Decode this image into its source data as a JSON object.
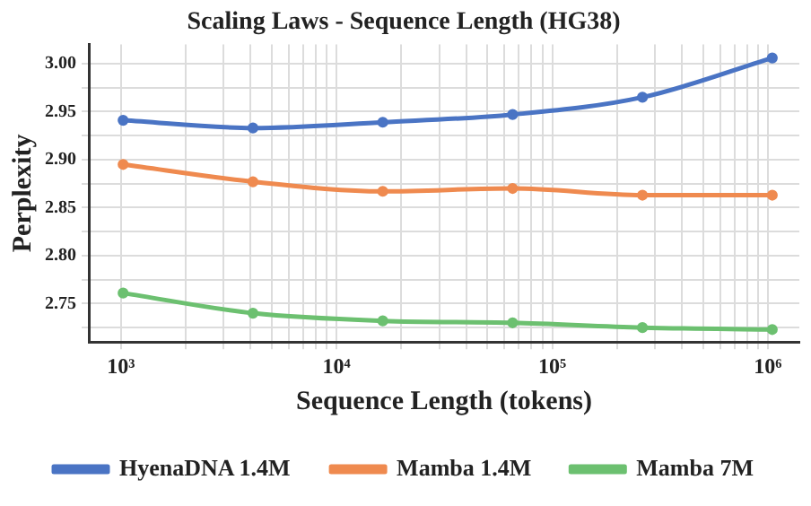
{
  "chart_data": {
    "type": "line",
    "title": "Scaling Laws - Sequence Length (HG38)",
    "xlabel": "Sequence Length (tokens)",
    "ylabel": "Perplexity",
    "x": [
      1024,
      4096,
      16384,
      65536,
      262144,
      1048576
    ],
    "series": [
      {
        "name": "HyenaDNA 1.4M",
        "color": "#4a74c4",
        "values": [
          2.941,
          2.933,
          2.939,
          2.947,
          2.965,
          3.006
        ]
      },
      {
        "name": "Mamba 1.4M",
        "color": "#ef8a4f",
        "values": [
          2.895,
          2.877,
          2.867,
          2.87,
          2.863,
          2.863
        ]
      },
      {
        "name": "Mamba 7M",
        "color": "#6cc070",
        "values": [
          2.761,
          2.74,
          2.732,
          2.73,
          2.725,
          2.723
        ]
      }
    ],
    "log": "x",
    "xlim": [
      710,
      1400000
    ],
    "xticks": [
      {
        "value": 1000,
        "label": "10³"
      },
      {
        "value": 2000,
        "label": null
      },
      {
        "value": 3000,
        "label": null
      },
      {
        "value": 4000,
        "label": null
      },
      {
        "value": 5000,
        "label": null
      },
      {
        "value": 6000,
        "label": null
      },
      {
        "value": 7000,
        "label": null
      },
      {
        "value": 8000,
        "label": null
      },
      {
        "value": 9000,
        "label": null
      },
      {
        "value": 10000,
        "label": "10⁴"
      },
      {
        "value": 20000,
        "label": null
      },
      {
        "value": 30000,
        "label": null
      },
      {
        "value": 40000,
        "label": null
      },
      {
        "value": 50000,
        "label": null
      },
      {
        "value": 60000,
        "label": null
      },
      {
        "value": 70000,
        "label": null
      },
      {
        "value": 80000,
        "label": null
      },
      {
        "value": 90000,
        "label": null
      },
      {
        "value": 100000,
        "label": "10⁵"
      },
      {
        "value": 200000,
        "label": null
      },
      {
        "value": 300000,
        "label": null
      },
      {
        "value": 400000,
        "label": null
      },
      {
        "value": 500000,
        "label": null
      },
      {
        "value": 600000,
        "label": null
      },
      {
        "value": 700000,
        "label": null
      },
      {
        "value": 800000,
        "label": null
      },
      {
        "value": 900000,
        "label": null
      },
      {
        "value": 1000000,
        "label": "10⁶"
      }
    ],
    "ylim": [
      2.71,
      3.02
    ],
    "yticks": [
      {
        "value": 2.725,
        "label": null
      },
      {
        "value": 2.75,
        "label": "2.75"
      },
      {
        "value": 2.775,
        "label": null
      },
      {
        "value": 2.8,
        "label": "2.80"
      },
      {
        "value": 2.825,
        "label": null
      },
      {
        "value": 2.85,
        "label": "2.85"
      },
      {
        "value": 2.875,
        "label": null
      },
      {
        "value": 2.9,
        "label": "2.90"
      },
      {
        "value": 2.925,
        "label": null
      },
      {
        "value": 2.95,
        "label": "2.95"
      },
      {
        "value": 2.975,
        "label": null
      },
      {
        "value": 3.0,
        "label": "3.00"
      }
    ],
    "grid": true,
    "legend": "bottom",
    "marker": "circle",
    "line_style": "solid"
  }
}
